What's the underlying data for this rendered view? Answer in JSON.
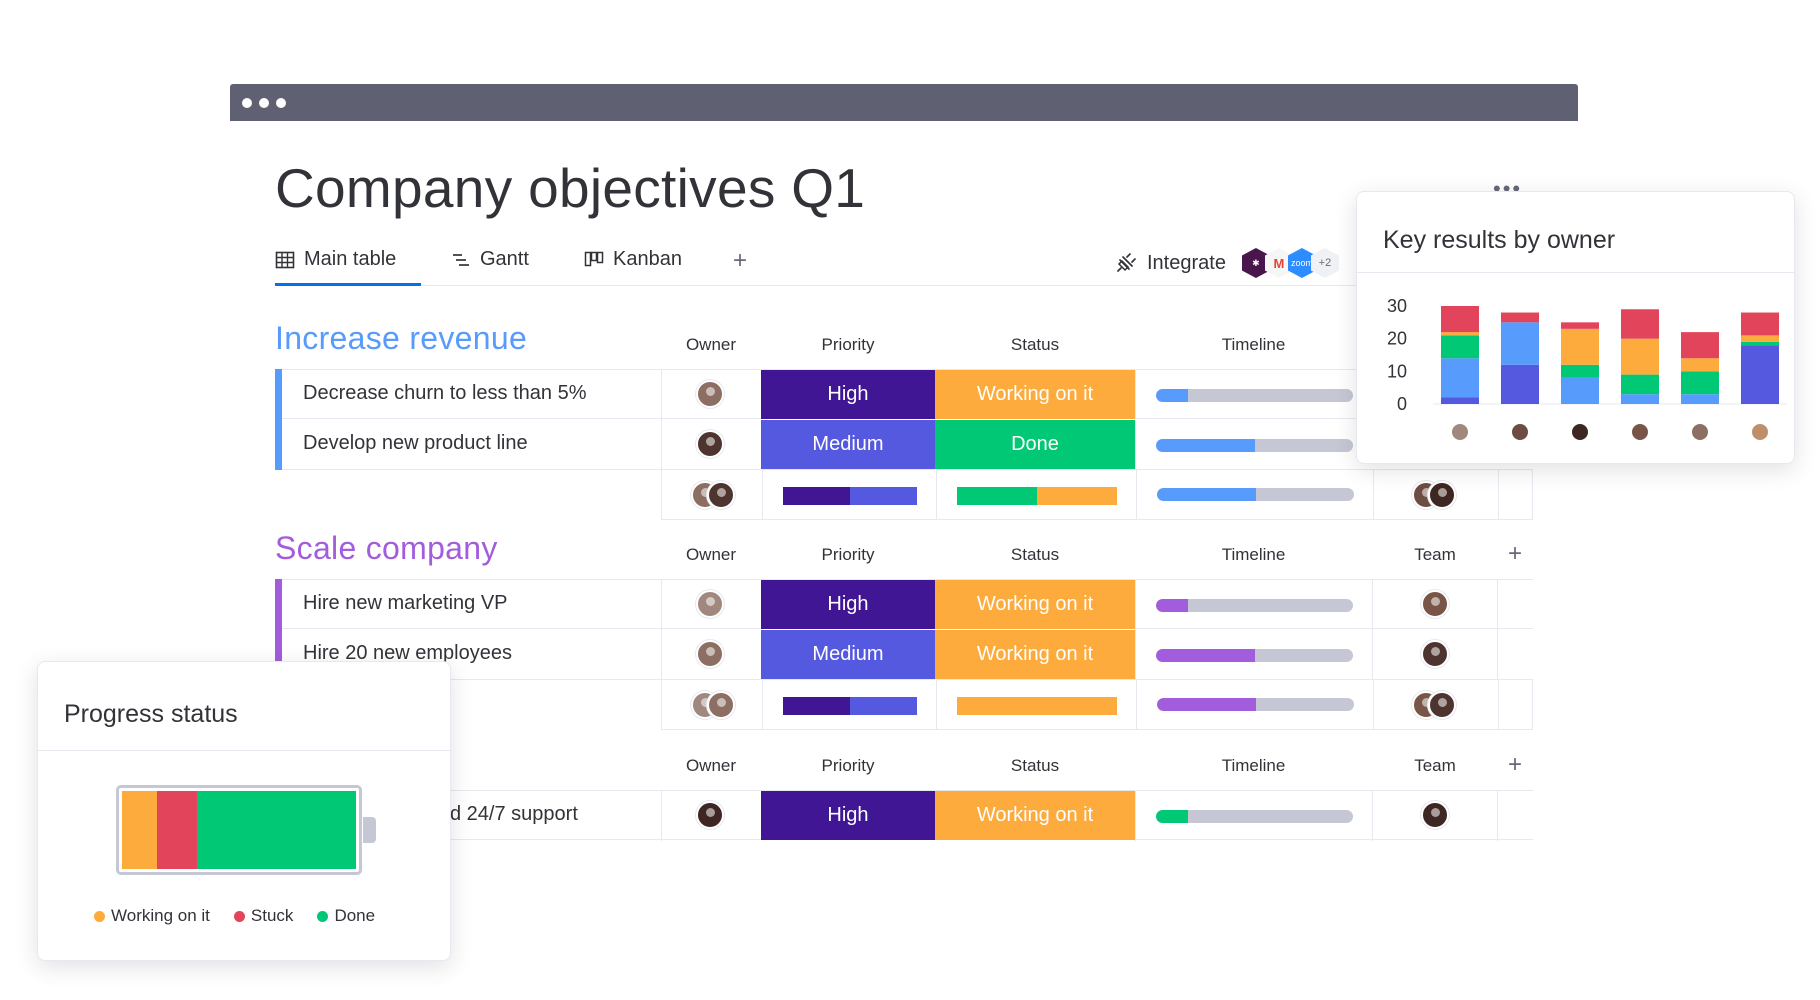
{
  "title": "Company objectives Q1",
  "title_more": "•••",
  "tabs": [
    {
      "label": "Main table",
      "icon": "table-icon",
      "active": true
    },
    {
      "label": "Gantt",
      "icon": "gantt-icon",
      "active": false
    },
    {
      "label": "Kanban",
      "icon": "kanban-icon",
      "active": false
    }
  ],
  "tab_add": "+",
  "integrate": {
    "label": "Integrate",
    "apps_badge": "+2",
    "zoom_label": "zoom"
  },
  "columns": {
    "owner": "Owner",
    "priority": "Priority",
    "status": "Status",
    "timeline": "Timeline",
    "team": "Team",
    "add": "+"
  },
  "groups": [
    {
      "title": "Increase revenue",
      "color": "#579bfc",
      "rows": [
        {
          "name": "Decrease churn to less than 5%",
          "priority": "High",
          "status": "Working on it",
          "timeline_progress": 0.16
        },
        {
          "name": "Develop new product line",
          "priority": "Medium",
          "status": "Done",
          "timeline_progress": 0.5
        }
      ]
    },
    {
      "title": "Scale company",
      "color": "#a25ddc",
      "rows": [
        {
          "name": "Hire new marketing VP",
          "priority": "High",
          "status": "Working on it",
          "timeline_progress": 0.16
        },
        {
          "name": "Hire 20 new employees",
          "priority": "Medium",
          "status": "Working on it",
          "timeline_progress": 0.5
        }
      ]
    },
    {
      "title": "",
      "color": "#00c875",
      "rows": [
        {
          "name": "d 24/7 support",
          "priority": "High",
          "status": "Working on it",
          "timeline_progress": 0.16
        }
      ]
    }
  ],
  "colors": {
    "high": "#401694",
    "medium": "#5559df",
    "working": "#fdab3d",
    "done": "#00c875",
    "stuck": "#e2445c",
    "blue": "#579bfc",
    "purple": "#a25ddc",
    "green": "#00c875"
  },
  "progress_card": {
    "title": "Progress status",
    "legend": [
      {
        "label": "Working on it",
        "color": "#fdab3d"
      },
      {
        "label": "Stuck",
        "color": "#e2445c"
      },
      {
        "label": "Done",
        "color": "#00c875"
      }
    ],
    "segments": [
      {
        "status": "Working on it",
        "fraction": 0.15
      },
      {
        "status": "Stuck",
        "fraction": 0.17
      },
      {
        "status": "Done",
        "fraction": 0.68
      }
    ]
  },
  "chart_data": {
    "type": "bar",
    "stacked": true,
    "title": "Key results by owner",
    "ylim": [
      0,
      30
    ],
    "yticks": [
      30,
      20,
      10,
      0
    ],
    "categories": [
      "owner-1",
      "owner-2",
      "owner-3",
      "owner-4",
      "owner-5",
      "owner-6"
    ],
    "series": [
      {
        "color": "#5559df",
        "values": [
          2,
          12,
          0,
          0,
          0,
          18
        ]
      },
      {
        "color": "#579bfc",
        "values": [
          12,
          13,
          8,
          3,
          3,
          0
        ]
      },
      {
        "color": "#00c875",
        "values": [
          7,
          0,
          4,
          6,
          7,
          1
        ]
      },
      {
        "color": "#fdab3d",
        "values": [
          1,
          0,
          11,
          11,
          4,
          2
        ]
      },
      {
        "color": "#e2445c",
        "values": [
          8,
          3,
          2,
          9,
          8,
          7
        ]
      }
    ]
  }
}
